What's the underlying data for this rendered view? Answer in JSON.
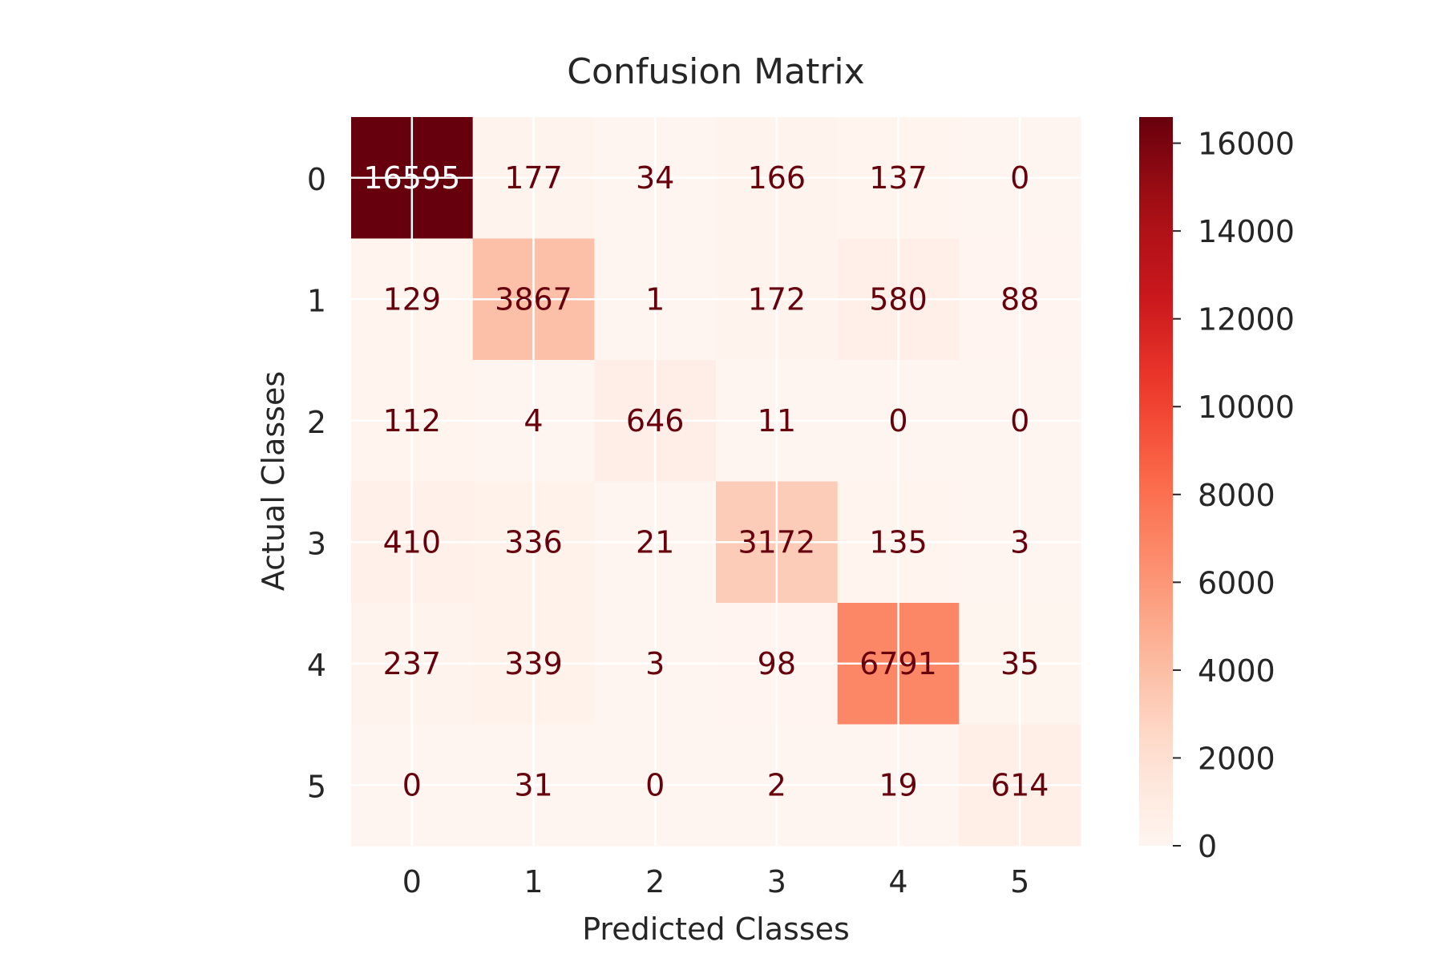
{
  "chart_data": {
    "type": "heatmap",
    "title": "Confusion Matrix",
    "xlabel": "Predicted Classes",
    "ylabel": "Actual Classes",
    "x_categories": [
      "0",
      "1",
      "2",
      "3",
      "4",
      "5"
    ],
    "y_categories": [
      "0",
      "1",
      "2",
      "3",
      "4",
      "5"
    ],
    "values": [
      [
        16595,
        177,
        34,
        166,
        137,
        0
      ],
      [
        129,
        3867,
        1,
        172,
        580,
        88
      ],
      [
        112,
        4,
        646,
        11,
        0,
        0
      ],
      [
        410,
        336,
        21,
        3172,
        135,
        3
      ],
      [
        237,
        339,
        3,
        98,
        6791,
        35
      ],
      [
        0,
        31,
        0,
        2,
        19,
        614
      ]
    ],
    "colorscale": "Reds",
    "colorbar": {
      "range": [
        0,
        16595
      ],
      "ticks": [
        0,
        2000,
        4000,
        6000,
        8000,
        10000,
        12000,
        14000,
        16000
      ]
    },
    "grid": true
  }
}
